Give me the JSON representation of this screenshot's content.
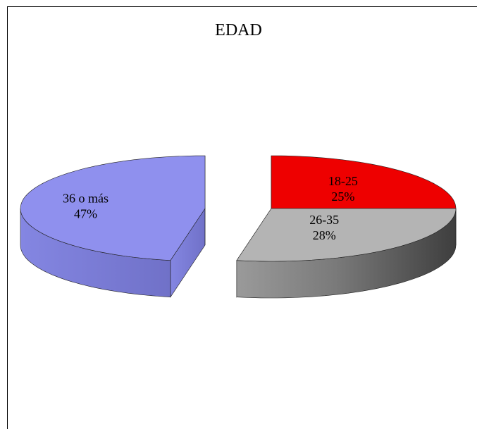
{
  "chart_data": {
    "type": "pie",
    "title": "EDAD",
    "slices": [
      {
        "label": "18-25",
        "value": 25,
        "value_label": "25%",
        "color": "#ee0000"
      },
      {
        "label": "26-35",
        "value": 28,
        "value_label": "28%",
        "color": "#b4b4b4"
      },
      {
        "label": "36 o más",
        "value": 47,
        "value_label": "47%",
        "color": "#8f90ee"
      }
    ],
    "style": "3d-exploded",
    "legend": "none"
  }
}
